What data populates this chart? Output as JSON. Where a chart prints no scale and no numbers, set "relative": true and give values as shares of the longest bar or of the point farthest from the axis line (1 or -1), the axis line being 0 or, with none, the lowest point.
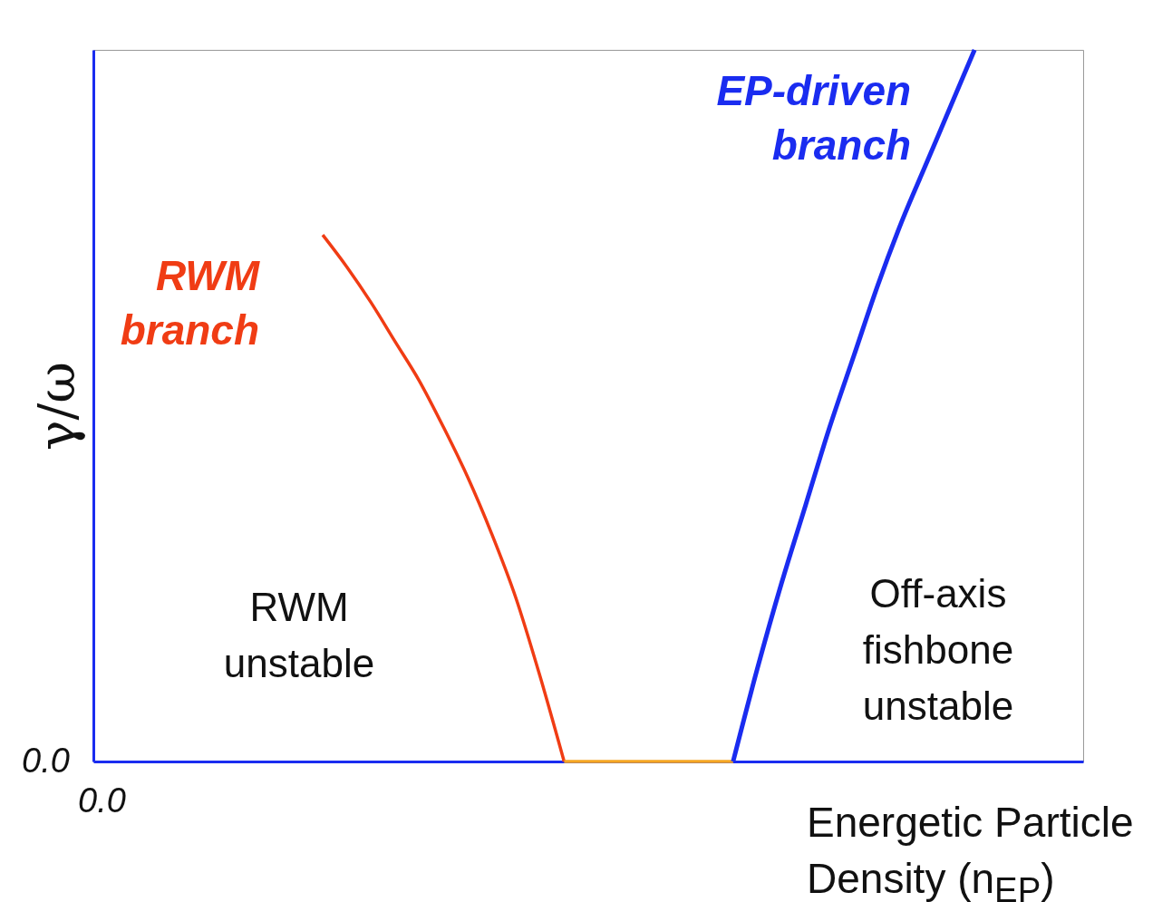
{
  "chart_data": {
    "type": "line",
    "relative": true,
    "xlabel": "Energetic Particle Density  (n$_{EP}$)",
    "ylabel": "γ/ω",
    "categories": [
      null,
      null,
      null,
      null,
      null,
      null,
      null,
      null,
      null,
      null,
      null,
      null,
      null,
      null,
      null,
      null,
      null,
      null,
      null,
      null,
      null,
      null,
      null,
      null,
      null,
      null,
      null,
      null,
      null,
      null,
      null,
      null,
      null,
      null,
      null,
      null,
      null,
      null,
      null,
      null,
      null
    ],
    "series": [
      {
        "name": "RWM branch",
        "color": "#f03c14",
        "values": [
          null,
          null,
          null,
          null,
          null,
          null,
          null,
          null,
          null,
          0.74,
          0.695,
          0.645,
          0.59,
          0.535,
          0.47,
          0.4,
          0.32,
          0.23,
          0.12,
          0,
          null,
          null,
          null,
          null,
          null,
          null,
          null,
          null,
          null,
          null,
          null,
          null,
          null,
          null,
          null,
          null,
          null,
          null,
          null,
          null,
          null
        ]
      },
      {
        "color": "#f5a623",
        "values": [
          null,
          null,
          null,
          null,
          null,
          null,
          null,
          null,
          null,
          null,
          null,
          null,
          null,
          null,
          null,
          null,
          null,
          null,
          null,
          0,
          0,
          0,
          0,
          0,
          0,
          0,
          0,
          null,
          null,
          null,
          null,
          null,
          null,
          null,
          null,
          null,
          null,
          null,
          null,
          null,
          null
        ]
      },
      {
        "name": "EP-driven branch",
        "color": "#1a2cf0",
        "values": [
          null,
          null,
          null,
          null,
          null,
          null,
          null,
          null,
          null,
          null,
          null,
          null,
          null,
          null,
          null,
          null,
          null,
          null,
          null,
          null,
          null,
          null,
          null,
          null,
          null,
          null,
          0,
          0.13,
          0.25,
          0.36,
          0.47,
          0.57,
          0.67,
          0.76,
          0.84,
          0.92,
          1,
          null,
          null,
          null,
          null
        ]
      }
    ],
    "annotations": [
      "RWM unstable",
      "Off-axis fishbone unstable",
      "0.0",
      "0.0"
    ],
    "grid": false,
    "line_style": "solid",
    "marker": "none"
  }
}
